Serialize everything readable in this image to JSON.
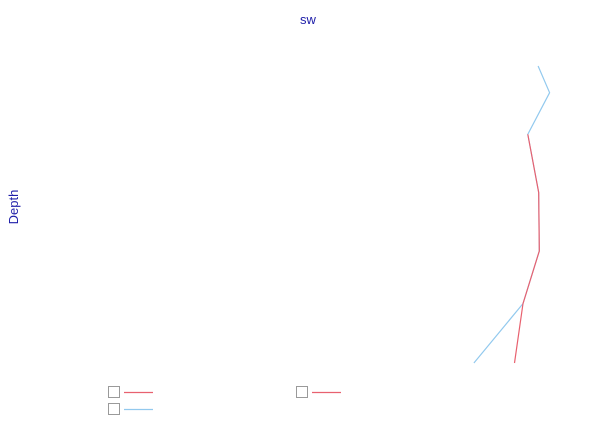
{
  "chart_data": {
    "type": "line",
    "title": "sw",
    "xlabel": "",
    "ylabel": "Depth",
    "grid": false,
    "orientation": "vertical-profile",
    "x_range": [
      0,
      100
    ],
    "y_range": [
      0,
      100
    ],
    "y_inverted": true,
    "series": [
      {
        "name": "",
        "color": "#e8616f",
        "points": [
          {
            "x": 87.1,
            "y": 23.0
          },
          {
            "x": 88.9,
            "y": 42.6
          },
          {
            "x": 89.0,
            "y": 62.3
          },
          {
            "x": 86.3,
            "y": 80.0
          },
          {
            "x": 84.9,
            "y": 100.0
          }
        ]
      },
      {
        "name": "",
        "color": "#92c9ee",
        "points": [
          {
            "x": 88.8,
            "y": 0.0
          },
          {
            "x": 90.7,
            "y": 9.0
          },
          {
            "x": 87.1,
            "y": 23.0
          },
          {
            "x": 88.9,
            "y": 42.6
          },
          {
            "x": 89.0,
            "y": 62.3
          },
          {
            "x": 86.3,
            "y": 80.0
          },
          {
            "x": 78.2,
            "y": 100.0
          }
        ]
      }
    ],
    "legend": {
      "placement": "bottom",
      "entries": [
        {
          "color": "#e8616f",
          "checked": false
        },
        {
          "color": "#e8616f",
          "checked": false
        },
        {
          "color": "#92c9ee",
          "checked": false
        }
      ]
    }
  }
}
